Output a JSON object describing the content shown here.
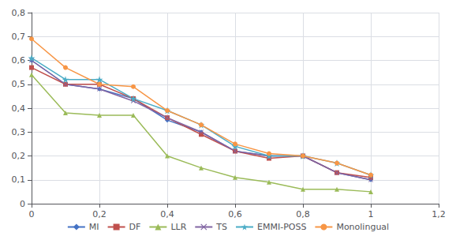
{
  "chart_data": {
    "type": "line",
    "x": [
      0,
      0.1,
      0.2,
      0.3,
      0.4,
      0.5,
      0.6,
      0.7,
      0.8,
      0.9,
      1.0
    ],
    "series": [
      {
        "name": "MI",
        "color": "#4472C4",
        "marker": "diamond",
        "values": [
          0.6,
          0.5,
          0.48,
          0.44,
          0.35,
          0.3,
          0.22,
          0.2,
          0.2,
          0.13,
          0.1
        ]
      },
      {
        "name": "DF",
        "color": "#C0504D",
        "marker": "square",
        "values": [
          0.57,
          0.5,
          0.5,
          0.44,
          0.36,
          0.29,
          0.22,
          0.19,
          0.2,
          0.13,
          0.11
        ]
      },
      {
        "name": "LLR",
        "color": "#9BBB59",
        "marker": "triangle",
        "values": [
          0.54,
          0.38,
          0.37,
          0.37,
          0.2,
          0.15,
          0.11,
          0.09,
          0.06,
          0.06,
          0.05
        ]
      },
      {
        "name": "TS",
        "color": "#8064A2",
        "marker": "x",
        "values": [
          0.6,
          0.5,
          0.48,
          0.43,
          0.36,
          0.3,
          0.22,
          0.2,
          0.2,
          0.13,
          0.1
        ]
      },
      {
        "name": "EMMI-POSS",
        "color": "#4BACC6",
        "marker": "star",
        "values": [
          0.61,
          0.52,
          0.52,
          0.44,
          0.39,
          0.33,
          0.24,
          0.2,
          0.2,
          0.17,
          0.12
        ]
      },
      {
        "name": "Monolingual",
        "color": "#F79646",
        "marker": "circle",
        "values": [
          0.69,
          0.57,
          0.5,
          0.49,
          0.39,
          0.33,
          0.25,
          0.21,
          0.2,
          0.17,
          0.12
        ]
      }
    ],
    "xlim": [
      0,
      1.2
    ],
    "ylim": [
      0,
      0.8
    ],
    "xticks": [
      0,
      {
        "value": 0.2,
        "label": "0,2"
      },
      {
        "value": 0.4,
        "label": "0,4"
      },
      {
        "value": 0.6,
        "label": "0,6"
      },
      {
        "value": 0.8,
        "label": "0,8"
      },
      1,
      {
        "value": 1.2,
        "label": "1,2"
      }
    ],
    "yticks": [
      0,
      {
        "value": 0.1,
        "label": "0,1"
      },
      {
        "value": 0.2,
        "label": "0,2"
      },
      {
        "value": 0.3,
        "label": "0,3"
      },
      {
        "value": 0.4,
        "label": "0,4"
      },
      {
        "value": 0.5,
        "label": "0,5"
      },
      {
        "value": 0.6,
        "label": "0,6"
      },
      {
        "value": 0.7,
        "label": "0,7"
      },
      {
        "value": 0.8,
        "label": "0,8"
      }
    ],
    "grid": true,
    "legend": "bottom"
  }
}
